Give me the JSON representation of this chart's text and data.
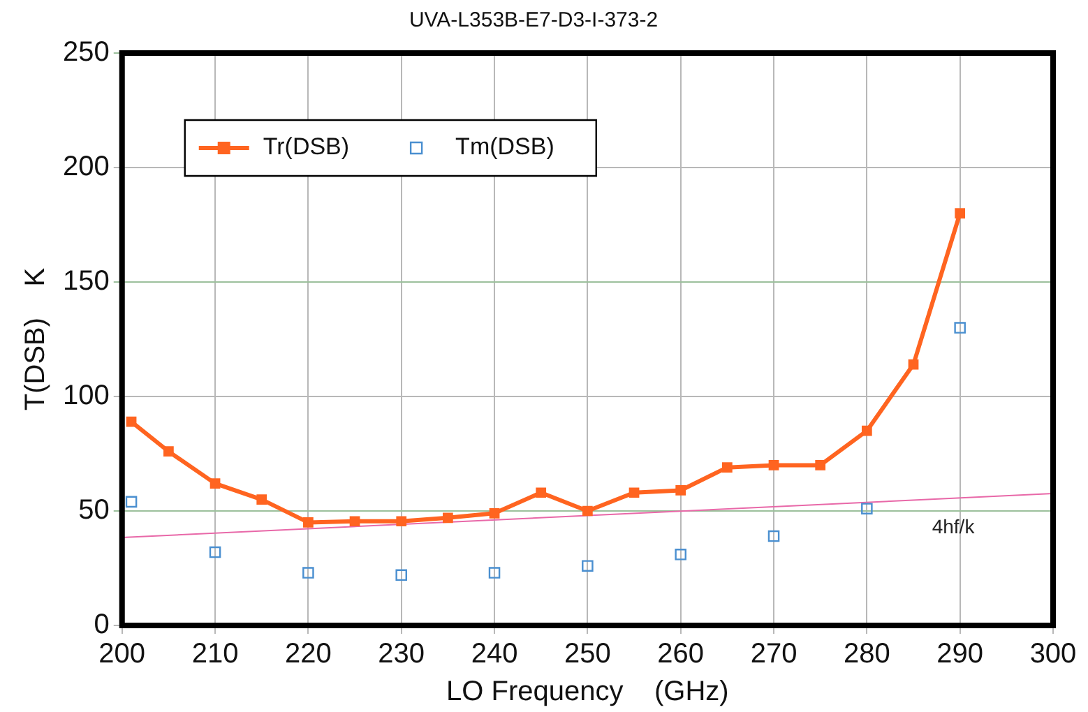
{
  "chart_data": {
    "type": "line",
    "title": "UVA-L353B-E7-D3-I-373-2",
    "xlabel": "LO Frequency    (GHz)",
    "ylabel": "T(DSB)    K",
    "series": [
      {
        "name": "Tr(DSB)",
        "type": "line",
        "color": "#ff6420",
        "marker": "square",
        "x": [
          201,
          205,
          210,
          215,
          220,
          225,
          230,
          235,
          240,
          245,
          250,
          255,
          260,
          265,
          270,
          275,
          280,
          285,
          290
        ],
        "values": [
          89,
          76,
          62,
          55,
          45,
          45.5,
          45.5,
          47,
          49,
          58,
          50,
          58,
          59,
          69,
          70,
          70,
          85,
          114,
          180
        ]
      },
      {
        "name": "Tm(DSB)",
        "type": "scatter",
        "color": "#4a8fd0",
        "marker": "square",
        "x": [
          201,
          210,
          220,
          230,
          240,
          250,
          260,
          270,
          280,
          290
        ],
        "values": [
          54,
          32,
          23,
          22,
          23,
          26,
          31,
          39,
          51,
          130
        ]
      },
      {
        "type": "line",
        "color": "#e868a8",
        "marker": "none",
        "x": [
          200,
          300
        ],
        "values": [
          38.4,
          57.6
        ]
      }
    ],
    "annotations": [
      "4hf/k"
    ],
    "xlim": [
      200,
      300
    ],
    "xticks": [
      200,
      210,
      220,
      230,
      240,
      250,
      260,
      270,
      280,
      290,
      300
    ],
    "ylim": [
      0,
      250
    ],
    "yticks": [
      0,
      50,
      100,
      150,
      200,
      250
    ],
    "grid": true,
    "legend": "top left"
  }
}
